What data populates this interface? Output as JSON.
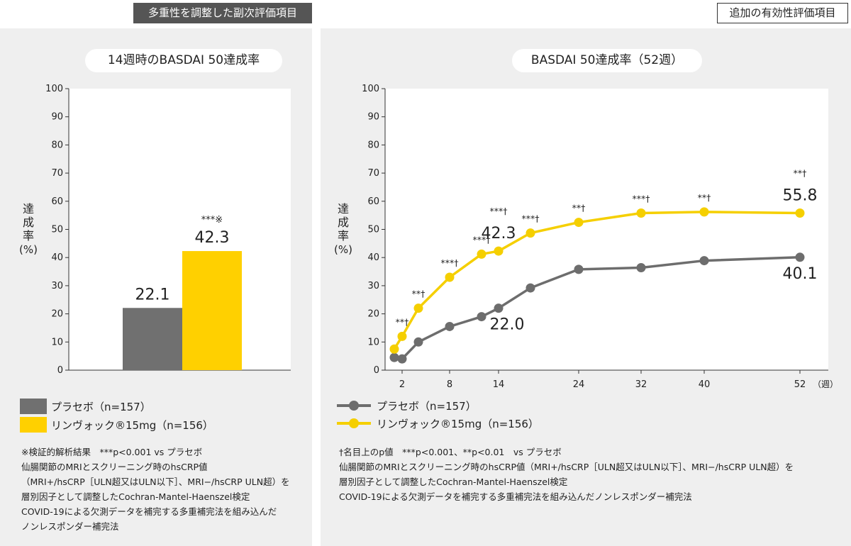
{
  "tags": {
    "left": "多重性を調整した副次評価項目",
    "right": "追加の有効性評価項目"
  },
  "colors": {
    "placebo": "#707070",
    "drug": "#ffd000",
    "drug_line": "#f5cf00",
    "placebo_line": "#6d6d6d"
  },
  "legend": {
    "placebo": "プラセボ（n=157）",
    "drug": "リンヴォック®15mg（n=156）"
  },
  "notes": {
    "left": [
      "※検証的解析結果　***p<0.001 vs プラセボ",
      "仙腸関節のMRIとスクリーニング時のhsCRP値",
      "（MRI+/hsCRP［ULN超又はULN以下］、MRI−/hsCRP ULN超）を",
      "層別因子として調整したCochran-Mantel-Haenszel検定",
      "COVID-19による欠測データを補完する多重補完法を組み込んだ",
      "ノンレスポンダー補完法"
    ],
    "right": [
      "†名目上のp値　***p<0.001、**p<0.01　vs プラセボ",
      "仙腸関節のMRIとスクリーニング時のhsCRP値（MRI+/hsCRP［ULN超又はULN以下］、MRI−/hsCRP ULN超）を",
      "層別因子として調整したCochran-Mantel-Haenszel検定",
      "COVID-19による欠測データを補完する多重補完法を組み込んだノンレスポンダー補完法"
    ]
  },
  "chart_data": [
    {
      "type": "bar",
      "title": "14週時のBASDAI 50達成率",
      "ylabel": "達成率（%）",
      "ylim": [
        0,
        100
      ],
      "yticks": [
        0,
        10,
        20,
        30,
        40,
        50,
        60,
        70,
        80,
        90,
        100
      ],
      "categories": [
        "プラセボ（n=157）",
        "リンヴォック®15mg（n=156）"
      ],
      "values": [
        22.1,
        42.3
      ],
      "value_labels": [
        "22.1",
        "42.3"
      ],
      "annotations": [
        "",
        "***※"
      ]
    },
    {
      "type": "line",
      "title": "BASDAI 50達成率（52週）",
      "ylabel": "達成率（%）",
      "xlabel": "（週）",
      "ylim": [
        0,
        100
      ],
      "xlim": [
        0,
        52
      ],
      "yticks": [
        0,
        10,
        20,
        30,
        40,
        50,
        60,
        70,
        80,
        90,
        100
      ],
      "xticks": [
        2,
        8,
        14,
        24,
        32,
        40,
        52
      ],
      "x": [
        0,
        1,
        2,
        4,
        8,
        12,
        14,
        18,
        24,
        32,
        40,
        52
      ],
      "series": [
        {
          "name": "プラセボ（n=157）",
          "values": [
            4.5,
            4.0,
            null,
            10.0,
            15.5,
            19.0,
            22.0,
            29.2,
            35.8,
            36.4,
            38.9,
            40.1
          ]
        },
        {
          "name": "リンヴォック®15mg（n=156）",
          "values": [
            7.5,
            null,
            12.0,
            22.0,
            33.0,
            41.2,
            42.3,
            48.7,
            52.5,
            55.8,
            56.2,
            55.8
          ]
        }
      ],
      "significance": [
        {
          "x": 2,
          "text": "**†"
        },
        {
          "x": 4,
          "text": "**†"
        },
        {
          "x": 8,
          "text": "***†"
        },
        {
          "x": 12,
          "text": "***†"
        },
        {
          "x": 14,
          "text": "***†"
        },
        {
          "x": 18,
          "text": "***†"
        },
        {
          "x": 24,
          "text": "**†"
        },
        {
          "x": 32,
          "text": "***†"
        },
        {
          "x": 40,
          "text": "**†"
        },
        {
          "x": 52,
          "text": "**†"
        }
      ],
      "value_labels": [
        {
          "series": 1,
          "x": 14,
          "text": "42.3"
        },
        {
          "series": 1,
          "x": 52,
          "text": "55.8"
        },
        {
          "series": 0,
          "x": 14,
          "text": "22.0"
        },
        {
          "series": 0,
          "x": 52,
          "text": "40.1"
        }
      ]
    }
  ]
}
